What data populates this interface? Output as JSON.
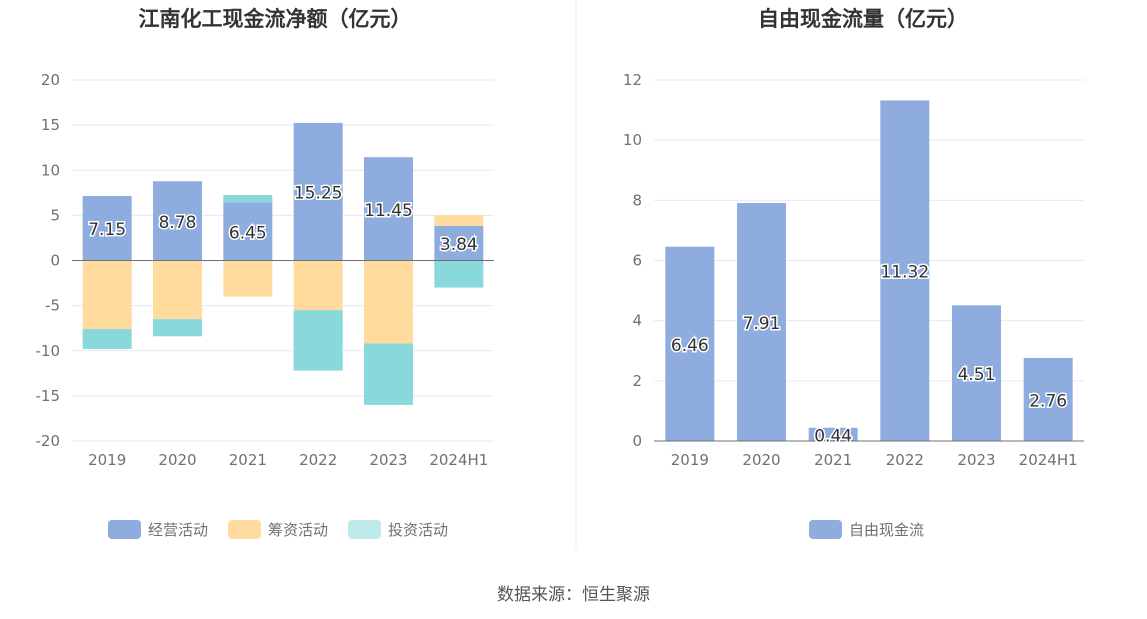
{
  "colors": {
    "operating": "#8eadde",
    "financing": "#ffdc9e",
    "investing": "#88d8dc",
    "free_cash_flow": "#8eadde",
    "grid": "#e6e9f2",
    "axis_text": "#6e7079",
    "label_text": "#333333",
    "title_text": "#333333"
  },
  "chart_data": [
    {
      "type": "bar",
      "stacked": true,
      "title": "江南化工现金流净额（亿元）",
      "categories": [
        "2019",
        "2020",
        "2021",
        "2022",
        "2023",
        "2024H1"
      ],
      "ylim": [
        -20,
        20
      ],
      "yticks": [
        20,
        15,
        10,
        5,
        0,
        -5,
        -10,
        -15,
        -20
      ],
      "series": [
        {
          "key": "operating",
          "name": "经营活动",
          "values": [
            7.15,
            8.78,
            6.45,
            15.25,
            11.45,
            3.84
          ],
          "labels": [
            "7.15",
            "8.78",
            "6.45",
            "15.25",
            "11.45",
            "3.84"
          ]
        },
        {
          "key": "financing",
          "name": "筹资活动",
          "values": [
            -7.6,
            -6.5,
            -4.0,
            -5.5,
            -9.2,
            1.2
          ]
        },
        {
          "key": "investing",
          "name": "投资活动",
          "values": [
            -2.2,
            -1.9,
            0.8,
            -6.7,
            -6.8,
            -3.0
          ]
        }
      ]
    },
    {
      "type": "bar",
      "title": "自由现金流量（亿元）",
      "categories": [
        "2019",
        "2020",
        "2021",
        "2022",
        "2023",
        "2024H1"
      ],
      "ylim": [
        0,
        12
      ],
      "yticks": [
        12,
        10,
        8,
        6,
        4,
        2,
        0
      ],
      "series": [
        {
          "key": "free_cash_flow",
          "name": "自由现金流",
          "values": [
            6.46,
            7.91,
            0.44,
            11.32,
            4.51,
            2.76
          ],
          "labels": [
            "6.46",
            "7.91",
            "0.44",
            "11.32",
            "4.51",
            "2.76"
          ]
        }
      ]
    }
  ],
  "source": "数据来源：恒生聚源"
}
